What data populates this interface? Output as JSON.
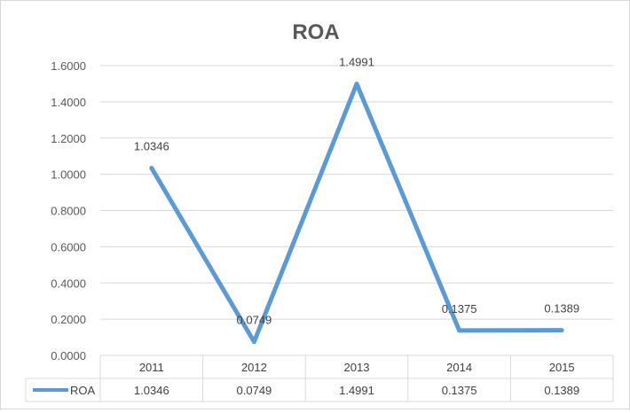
{
  "chart_data": {
    "type": "line",
    "title": "ROA",
    "categories": [
      "2011",
      "2012",
      "2013",
      "2014",
      "2015"
    ],
    "series": [
      {
        "name": "ROA",
        "values": [
          1.0346,
          0.0749,
          1.4991,
          0.1375,
          0.1389
        ],
        "labels": [
          "1.0346",
          "0.0749",
          "1.4991",
          "0.1375",
          "0.1389"
        ],
        "color": "#5b9bd5"
      }
    ],
    "y_ticks": [
      "0.0000",
      "0.2000",
      "0.4000",
      "0.6000",
      "0.8000",
      "1.0000",
      "1.2000",
      "1.4000",
      "1.6000"
    ],
    "ylim": [
      0,
      1.6
    ],
    "grid": true,
    "legend": "data-table",
    "data_table": true
  }
}
